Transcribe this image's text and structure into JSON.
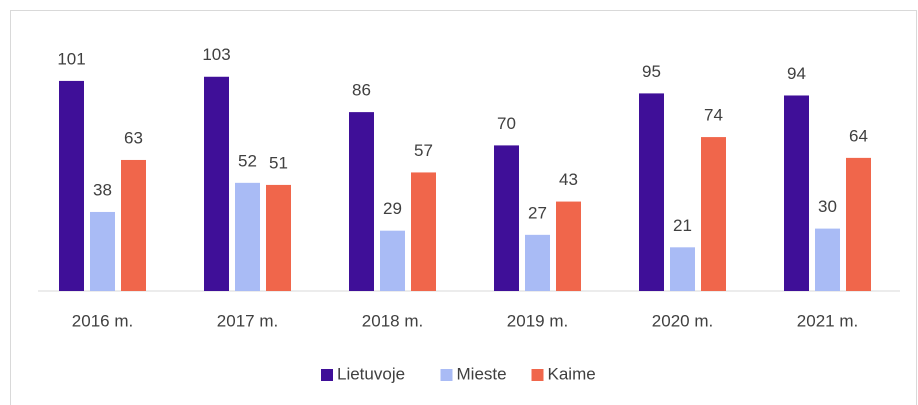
{
  "chart_data": {
    "type": "bar",
    "categories": [
      "2016 m.",
      "2017 m.",
      "2018 m.",
      "2019 m.",
      "2020 m.",
      "2021 m."
    ],
    "series": [
      {
        "name": "Lietuvoje",
        "color": "#3f0f98",
        "values": [
          101,
          103,
          86,
          70,
          95,
          94
        ]
      },
      {
        "name": "Mieste",
        "color": "#a9bbf5",
        "values": [
          38,
          52,
          29,
          27,
          21,
          30
        ]
      },
      {
        "name": "Kaime",
        "color": "#f0664b",
        "values": [
          63,
          51,
          57,
          43,
          74,
          64
        ]
      }
    ],
    "legend": "bottom"
  }
}
